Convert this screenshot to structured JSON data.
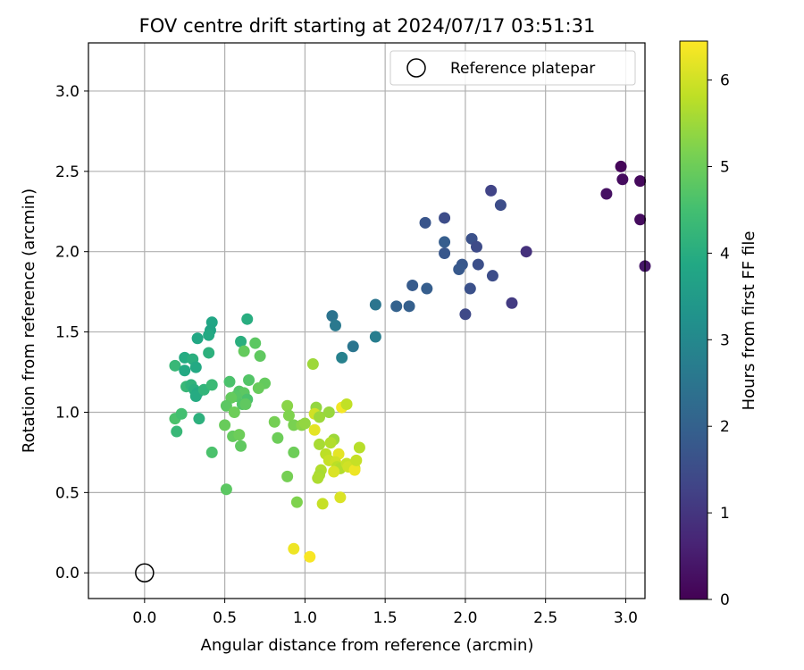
{
  "chart_data": {
    "type": "scatter",
    "title": "FOV centre drift starting at 2024/07/17 03:51:31",
    "xlabel": "Angular distance from reference (arcmin)",
    "ylabel": "Rotation from reference (arcmin)",
    "xlim": [
      -0.35,
      3.12
    ],
    "ylim": [
      -0.16,
      3.3
    ],
    "x_ticks": [
      "0.0",
      "0.5",
      "1.0",
      "1.5",
      "2.0",
      "2.5",
      "3.0"
    ],
    "y_ticks": [
      "0.0",
      "0.5",
      "1.0",
      "1.5",
      "2.0",
      "2.5",
      "3.0"
    ],
    "grid": true,
    "legend": {
      "position": "top-right",
      "entries": [
        "Reference platepar"
      ]
    },
    "colorbar": {
      "label": "Hours from first FF file",
      "colormap": "viridis",
      "range": [
        0,
        6.45
      ],
      "ticks": [
        "0",
        "1",
        "2",
        "3",
        "4",
        "5",
        "6"
      ]
    },
    "reference_point": {
      "x": 0.0,
      "y": 0.0
    },
    "series": [
      {
        "points": [
          {
            "x": 2.97,
            "y": 2.53,
            "c": 0.1
          },
          {
            "x": 2.98,
            "y": 2.45,
            "c": 0.2
          },
          {
            "x": 3.09,
            "y": 2.44,
            "c": 0.15
          },
          {
            "x": 2.88,
            "y": 2.36,
            "c": 0.3
          },
          {
            "x": 3.09,
            "y": 2.2,
            "c": 0.2
          },
          {
            "x": 3.12,
            "y": 1.91,
            "c": 0.4
          },
          {
            "x": 2.38,
            "y": 2.0,
            "c": 0.9
          },
          {
            "x": 2.29,
            "y": 1.68,
            "c": 1.1
          },
          {
            "x": 2.16,
            "y": 2.38,
            "c": 1.3
          },
          {
            "x": 2.22,
            "y": 2.29,
            "c": 1.5
          },
          {
            "x": 2.04,
            "y": 2.08,
            "c": 1.6
          },
          {
            "x": 2.07,
            "y": 2.03,
            "c": 1.45
          },
          {
            "x": 2.08,
            "y": 1.92,
            "c": 1.55
          },
          {
            "x": 2.17,
            "y": 1.85,
            "c": 1.5
          },
          {
            "x": 1.98,
            "y": 1.92,
            "c": 1.75
          },
          {
            "x": 1.96,
            "y": 1.89,
            "c": 1.8
          },
          {
            "x": 2.03,
            "y": 1.77,
            "c": 1.6
          },
          {
            "x": 2.0,
            "y": 1.61,
            "c": 1.4
          },
          {
            "x": 1.87,
            "y": 2.21,
            "c": 1.5
          },
          {
            "x": 1.75,
            "y": 2.18,
            "c": 1.7
          },
          {
            "x": 1.87,
            "y": 2.06,
            "c": 1.9
          },
          {
            "x": 1.87,
            "y": 1.99,
            "c": 1.75
          },
          {
            "x": 1.67,
            "y": 1.79,
            "c": 1.85
          },
          {
            "x": 1.76,
            "y": 1.77,
            "c": 1.9
          },
          {
            "x": 1.57,
            "y": 1.66,
            "c": 2.0
          },
          {
            "x": 1.65,
            "y": 1.66,
            "c": 1.95
          },
          {
            "x": 1.44,
            "y": 1.67,
            "c": 2.5
          },
          {
            "x": 1.44,
            "y": 1.47,
            "c": 2.7
          },
          {
            "x": 1.3,
            "y": 1.41,
            "c": 2.5
          },
          {
            "x": 1.17,
            "y": 1.6,
            "c": 2.45
          },
          {
            "x": 1.19,
            "y": 1.54,
            "c": 2.6
          },
          {
            "x": 1.23,
            "y": 1.34,
            "c": 2.8
          },
          {
            "x": 0.42,
            "y": 1.56,
            "c": 3.8
          },
          {
            "x": 0.41,
            "y": 1.51,
            "c": 3.75
          },
          {
            "x": 0.4,
            "y": 1.48,
            "c": 3.9
          },
          {
            "x": 0.33,
            "y": 1.46,
            "c": 3.85
          },
          {
            "x": 0.4,
            "y": 1.37,
            "c": 4.1
          },
          {
            "x": 0.25,
            "y": 1.34,
            "c": 3.95
          },
          {
            "x": 0.3,
            "y": 1.33,
            "c": 4.05
          },
          {
            "x": 0.19,
            "y": 1.29,
            "c": 4.3
          },
          {
            "x": 0.32,
            "y": 1.28,
            "c": 3.9
          },
          {
            "x": 0.25,
            "y": 1.26,
            "c": 3.9
          },
          {
            "x": 0.26,
            "y": 1.16,
            "c": 4.3
          },
          {
            "x": 0.29,
            "y": 1.17,
            "c": 4.15
          },
          {
            "x": 0.31,
            "y": 1.14,
            "c": 4.05
          },
          {
            "x": 0.33,
            "y": 1.12,
            "c": 3.9
          },
          {
            "x": 0.32,
            "y": 1.1,
            "c": 3.95
          },
          {
            "x": 0.37,
            "y": 1.14,
            "c": 4.2
          },
          {
            "x": 0.42,
            "y": 1.17,
            "c": 4.35
          },
          {
            "x": 0.19,
            "y": 0.96,
            "c": 4.6
          },
          {
            "x": 0.23,
            "y": 0.99,
            "c": 4.5
          },
          {
            "x": 0.34,
            "y": 0.96,
            "c": 4.1
          },
          {
            "x": 0.2,
            "y": 0.88,
            "c": 4.3
          },
          {
            "x": 0.42,
            "y": 0.75,
            "c": 4.6
          },
          {
            "x": 0.64,
            "y": 1.58,
            "c": 4.0
          },
          {
            "x": 0.6,
            "y": 1.44,
            "c": 4.05
          },
          {
            "x": 0.69,
            "y": 1.43,
            "c": 4.8
          },
          {
            "x": 0.62,
            "y": 1.38,
            "c": 4.9
          },
          {
            "x": 0.72,
            "y": 1.35,
            "c": 4.85
          },
          {
            "x": 0.53,
            "y": 1.19,
            "c": 4.6
          },
          {
            "x": 0.65,
            "y": 1.2,
            "c": 4.7
          },
          {
            "x": 0.75,
            "y": 1.18,
            "c": 4.9
          },
          {
            "x": 0.71,
            "y": 1.15,
            "c": 4.95
          },
          {
            "x": 0.59,
            "y": 1.13,
            "c": 4.7
          },
          {
            "x": 0.62,
            "y": 1.12,
            "c": 4.8
          },
          {
            "x": 0.57,
            "y": 1.1,
            "c": 4.75
          },
          {
            "x": 0.54,
            "y": 1.09,
            "c": 4.9
          },
          {
            "x": 0.64,
            "y": 1.08,
            "c": 4.6
          },
          {
            "x": 0.51,
            "y": 1.04,
            "c": 4.8
          },
          {
            "x": 0.61,
            "y": 1.05,
            "c": 4.7
          },
          {
            "x": 0.63,
            "y": 1.05,
            "c": 4.85
          },
          {
            "x": 0.56,
            "y": 1.0,
            "c": 5.0
          },
          {
            "x": 0.5,
            "y": 0.92,
            "c": 4.95
          },
          {
            "x": 0.55,
            "y": 0.85,
            "c": 4.9
          },
          {
            "x": 0.59,
            "y": 0.86,
            "c": 5.0
          },
          {
            "x": 0.6,
            "y": 0.79,
            "c": 4.85
          },
          {
            "x": 0.51,
            "y": 0.52,
            "c": 4.8
          },
          {
            "x": 0.81,
            "y": 0.94,
            "c": 5.1
          },
          {
            "x": 0.83,
            "y": 0.84,
            "c": 5.0
          },
          {
            "x": 0.89,
            "y": 1.04,
            "c": 5.3
          },
          {
            "x": 0.9,
            "y": 0.98,
            "c": 5.2
          },
          {
            "x": 0.93,
            "y": 0.92,
            "c": 5.15
          },
          {
            "x": 0.93,
            "y": 0.75,
            "c": 5.0
          },
          {
            "x": 0.89,
            "y": 0.6,
            "c": 5.1
          },
          {
            "x": 0.95,
            "y": 0.44,
            "c": 5.2
          },
          {
            "x": 0.98,
            "y": 0.92,
            "c": 5.3
          },
          {
            "x": 1.0,
            "y": 0.93,
            "c": 5.4
          },
          {
            "x": 1.05,
            "y": 1.3,
            "c": 5.5
          },
          {
            "x": 1.07,
            "y": 1.03,
            "c": 5.4
          },
          {
            "x": 1.06,
            "y": 0.99,
            "c": 6.0
          },
          {
            "x": 1.09,
            "y": 0.97,
            "c": 5.5
          },
          {
            "x": 1.15,
            "y": 1.0,
            "c": 5.45
          },
          {
            "x": 1.06,
            "y": 0.89,
            "c": 6.2
          },
          {
            "x": 1.09,
            "y": 0.8,
            "c": 5.6
          },
          {
            "x": 1.18,
            "y": 0.83,
            "c": 5.5
          },
          {
            "x": 1.16,
            "y": 0.81,
            "c": 5.7
          },
          {
            "x": 1.13,
            "y": 0.74,
            "c": 5.8
          },
          {
            "x": 1.21,
            "y": 0.74,
            "c": 6.2
          },
          {
            "x": 1.15,
            "y": 0.7,
            "c": 5.9
          },
          {
            "x": 1.1,
            "y": 0.64,
            "c": 5.7
          },
          {
            "x": 1.09,
            "y": 0.61,
            "c": 5.6
          },
          {
            "x": 1.08,
            "y": 0.59,
            "c": 5.65
          },
          {
            "x": 1.19,
            "y": 0.69,
            "c": 6.0
          },
          {
            "x": 1.2,
            "y": 0.66,
            "c": 5.8
          },
          {
            "x": 1.22,
            "y": 0.65,
            "c": 5.7
          },
          {
            "x": 1.26,
            "y": 0.68,
            "c": 5.9
          },
          {
            "x": 1.27,
            "y": 0.66,
            "c": 6.0
          },
          {
            "x": 1.18,
            "y": 0.63,
            "c": 6.1
          },
          {
            "x": 1.31,
            "y": 0.65,
            "c": 6.0
          },
          {
            "x": 1.31,
            "y": 0.64,
            "c": 6.3
          },
          {
            "x": 1.32,
            "y": 0.7,
            "c": 5.9
          },
          {
            "x": 1.34,
            "y": 0.78,
            "c": 5.75
          },
          {
            "x": 1.23,
            "y": 1.03,
            "c": 6.35
          },
          {
            "x": 1.26,
            "y": 1.05,
            "c": 5.85
          },
          {
            "x": 1.11,
            "y": 0.43,
            "c": 5.9
          },
          {
            "x": 1.22,
            "y": 0.47,
            "c": 6.1
          },
          {
            "x": 0.93,
            "y": 0.15,
            "c": 6.3
          },
          {
            "x": 1.03,
            "y": 0.1,
            "c": 6.4
          }
        ]
      }
    ]
  }
}
